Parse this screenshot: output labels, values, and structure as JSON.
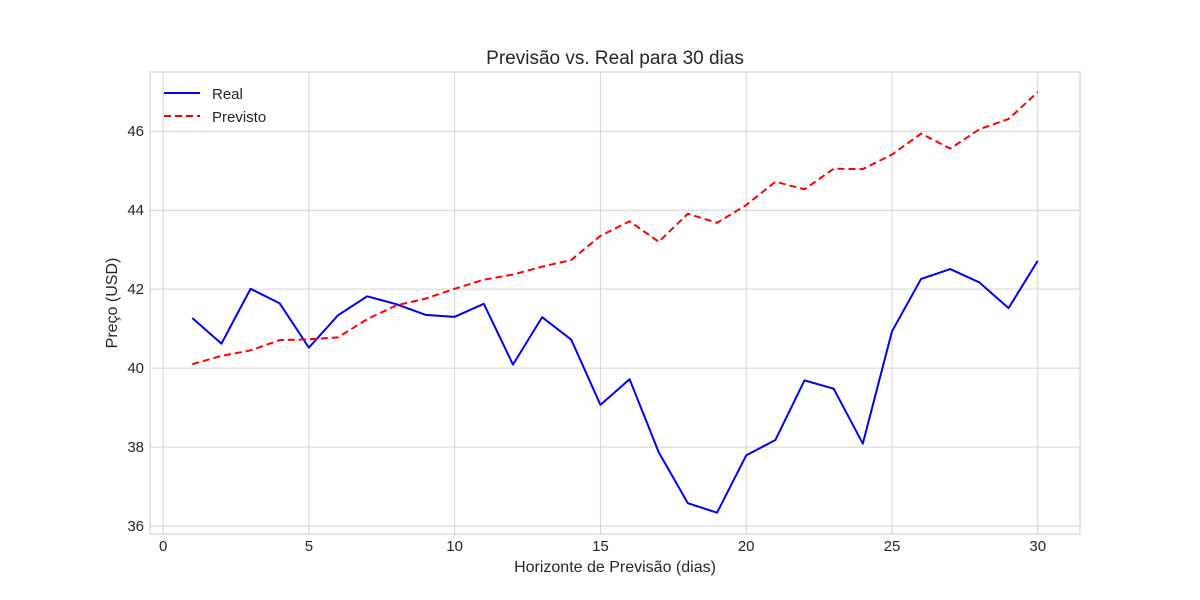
{
  "chart_data": {
    "type": "line",
    "title": "Previsão vs. Real para 30 dias",
    "xlabel": "Horizonte de Previsão (dias)",
    "ylabel": "Preço (USD)",
    "xlim": [
      -0.45,
      31.45
    ],
    "ylim": [
      35.8,
      47.5
    ],
    "xticks": [
      0,
      5,
      10,
      15,
      20,
      25,
      30
    ],
    "yticks": [
      36,
      38,
      40,
      42,
      44,
      46
    ],
    "grid": true,
    "legend_position": "top-left",
    "x": [
      1,
      2,
      3,
      4,
      5,
      6,
      7,
      8,
      9,
      10,
      11,
      12,
      13,
      14,
      15,
      16,
      17,
      18,
      19,
      20,
      21,
      22,
      23,
      24,
      25,
      26,
      27,
      28,
      29,
      30
    ],
    "series": [
      {
        "name": "Real",
        "color": "#0000ee",
        "style": "solid",
        "values": [
          41.27,
          40.62,
          42.01,
          41.64,
          40.52,
          41.34,
          41.82,
          41.62,
          41.35,
          41.3,
          41.63,
          40.09,
          41.29,
          40.72,
          39.07,
          39.72,
          37.87,
          36.58,
          36.34,
          37.79,
          38.18,
          39.69,
          39.48,
          38.09,
          40.93,
          42.26,
          42.51,
          42.17,
          41.52,
          42.72
        ]
      },
      {
        "name": "Previsto",
        "color": "#ff0000",
        "style": "dashed",
        "values": [
          40.1,
          40.31,
          40.45,
          40.71,
          40.73,
          40.78,
          41.24,
          41.59,
          41.76,
          42.01,
          42.24,
          42.37,
          42.57,
          42.74,
          43.35,
          43.72,
          43.2,
          43.91,
          43.68,
          44.13,
          44.72,
          44.53,
          45.05,
          45.04,
          45.41,
          45.94,
          45.56,
          46.05,
          46.31,
          46.99
        ]
      }
    ]
  }
}
